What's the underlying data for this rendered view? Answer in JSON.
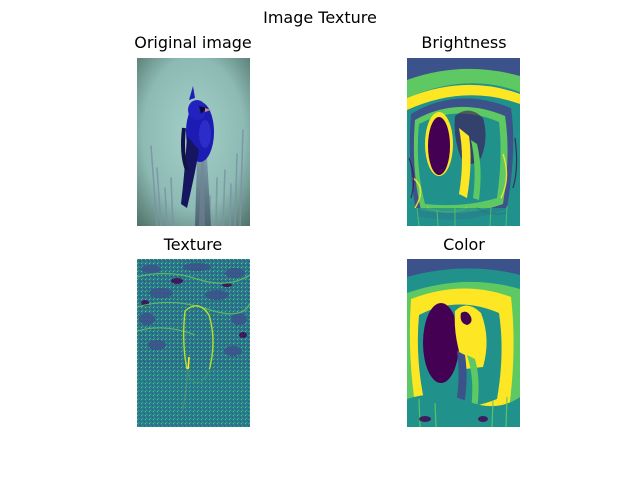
{
  "figure": {
    "title": "Image Texture"
  },
  "panels": [
    {
      "title": "Original image",
      "image": "blue bird perched on a post against a teal background"
    },
    {
      "title": "Brightness",
      "image": "segmented brightness map in viridis colors"
    },
    {
      "title": "Texture",
      "image": "texture map in viridis colors"
    },
    {
      "title": "Color",
      "image": "segmented color map in viridis colors"
    }
  ],
  "colors": {
    "viridis_dark": "#440154",
    "viridis_blue": "#3b528b",
    "viridis_teal": "#21918c",
    "viridis_green": "#5ec962",
    "viridis_yellow": "#fde725",
    "bird_blue": "#1a1ab0",
    "background_teal": "#8fbdb6"
  }
}
